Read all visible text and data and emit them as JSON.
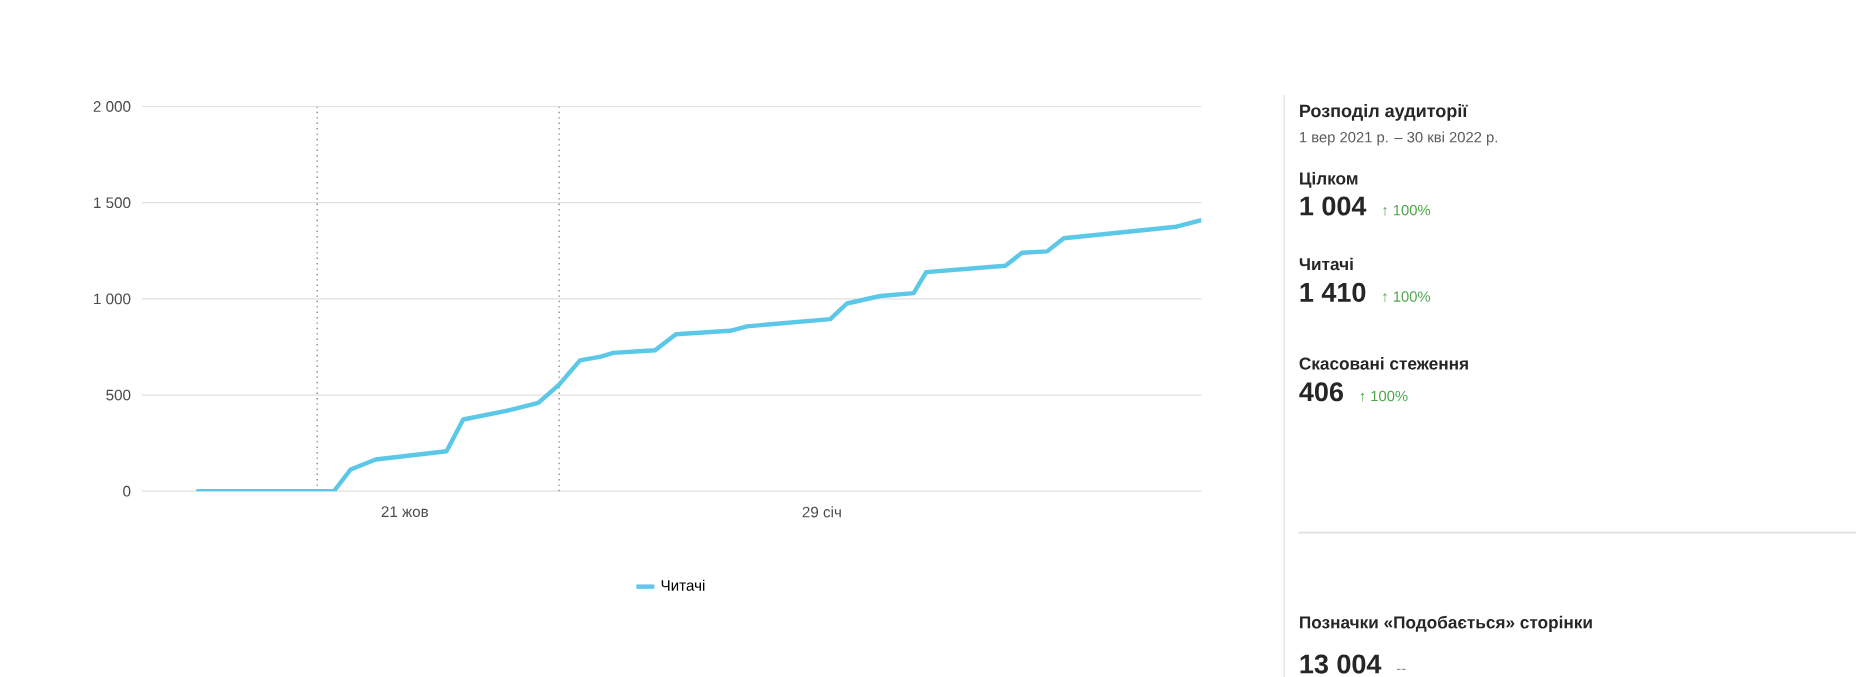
{
  "chart_data": [
    {
      "type": "line",
      "xlim": [
        "2021-08-19",
        "2022-04-30"
      ],
      "ylim": [
        0,
        2000
      ],
      "xticks": [
        {
          "value": "2021-10-21",
          "label": "21 жов"
        },
        {
          "value": "2022-01-29",
          "label": "29 січ"
        }
      ],
      "yticks": [
        0,
        500,
        {
          "value": 1000,
          "label": "1 000"
        },
        {
          "value": 1500,
          "label": "1 500"
        },
        {
          "value": 2000,
          "label": "2 000"
        }
      ],
      "grid": "y",
      "legend": "bottom",
      "ref_lines": [
        {
          "axis": "x",
          "value": "2021-09-30",
          "color": "#888888",
          "line_style": "dotted"
        },
        {
          "axis": "x",
          "value": "2021-11-27",
          "color": "#888888",
          "line_style": "dotted"
        }
      ],
      "series": [
        {
          "name": "Читачі",
          "color": "#5bc8e8",
          "x": [
            "2021-09-01",
            "2021-09-30",
            "2021-10-04",
            "2021-10-08",
            "2021-10-14",
            "2021-10-31",
            "2021-11-04",
            "2021-11-14",
            "2021-11-22",
            "2021-11-27",
            "2021-12-02",
            "2021-12-07",
            "2021-12-10",
            "2021-12-20",
            "2021-12-25",
            "2022-01-07",
            "2022-01-11",
            "2022-01-31",
            "2022-02-04",
            "2022-02-12",
            "2022-02-20",
            "2022-02-23",
            "2022-03-14",
            "2022-03-18",
            "2022-03-24",
            "2022-03-28",
            "2022-04-24",
            "2022-04-30"
          ],
          "values": [
            0,
            0,
            0,
            113,
            165,
            208,
            373,
            416,
            459,
            554,
            680,
            700,
            719,
            733,
            816,
            834,
            857,
            895,
            976,
            1015,
            1030,
            1139,
            1172,
            1240,
            1247,
            1315,
            1375,
            1410
          ]
        }
      ]
    },
    {
      "type": "other",
      "title": "Розподіл аудиторії",
      "subtitle": "1 вер 2021 р. – 30 кві 2022 р.",
      "annotations": [
        "Цілком",
        "1 004",
        "↑ 100%",
        "Читачі",
        "1 410",
        "↑ 100%",
        "Скасовані стеження",
        "406",
        "↑ 100%",
        "Позначки «Подобається» сторінки",
        "13 004",
        "--"
      ]
    }
  ]
}
